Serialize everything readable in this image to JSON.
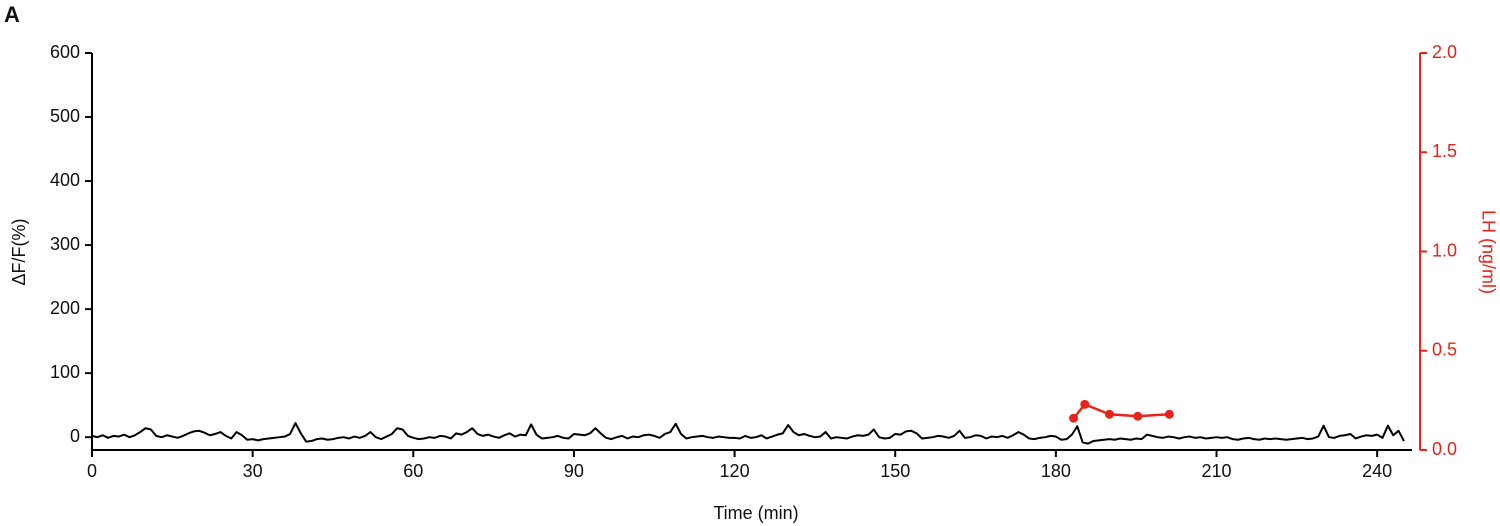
{
  "chart_data": {
    "type": "line",
    "panel_label": "A",
    "xlabel": "Time (min)",
    "ylabel": "ΔF/F(%)",
    "y2label": "LH (ng/ml)",
    "xlim": [
      0,
      248
    ],
    "xticks": [
      0,
      30,
      60,
      90,
      120,
      150,
      180,
      210,
      240
    ],
    "ylim": [
      -20,
      600
    ],
    "yticks": [
      0,
      100,
      200,
      300,
      400,
      500,
      600
    ],
    "y2lim": [
      0,
      2.0
    ],
    "y2ticks": [
      {
        "value": 0,
        "label": "0.0"
      },
      0.5,
      {
        "value": 1,
        "label": "1.0"
      },
      1.5,
      {
        "value": 2,
        "label": "2.0"
      }
    ],
    "y2color": "#e8231a",
    "series": [
      {
        "color": "#000000",
        "markers": false,
        "x": [
          0,
          1,
          2,
          3,
          4,
          5,
          6,
          7,
          8,
          9,
          10,
          11,
          12,
          13,
          14,
          15,
          16,
          17,
          18,
          19,
          20,
          21,
          22,
          23,
          24,
          25,
          26,
          27,
          28,
          29,
          30,
          31,
          32,
          33,
          34,
          35,
          36,
          37,
          38,
          39,
          40,
          41,
          42,
          43,
          44,
          45,
          46,
          47,
          48,
          49,
          50,
          51,
          52,
          53,
          54,
          55,
          56,
          57,
          58,
          59,
          60,
          61,
          62,
          63,
          64,
          65,
          66,
          67,
          68,
          69,
          70,
          71,
          72,
          73,
          74,
          75,
          76,
          77,
          78,
          79,
          80,
          81,
          82,
          83,
          84,
          85,
          86,
          87,
          88,
          89,
          90,
          91,
          92,
          93,
          94,
          95,
          96,
          97,
          98,
          99,
          100,
          101,
          102,
          103,
          104,
          105,
          106,
          107,
          108,
          109,
          110,
          111,
          112,
          113,
          114,
          115,
          116,
          117,
          118,
          119,
          120,
          121,
          122,
          123,
          124,
          125,
          126,
          127,
          128,
          129,
          130,
          131,
          132,
          133,
          134,
          135,
          136,
          137,
          138,
          139,
          140,
          141,
          142,
          143,
          144,
          145,
          146,
          147,
          148,
          149,
          150,
          151,
          152,
          153,
          154,
          155,
          156,
          157,
          158,
          159,
          160,
          161,
          162,
          163,
          164,
          165,
          166,
          167,
          168,
          169,
          170,
          171,
          172,
          173,
          174,
          175,
          176,
          177,
          178,
          179,
          180,
          181,
          182,
          183,
          184,
          185,
          186,
          187,
          188,
          189,
          190,
          191,
          192,
          193,
          194,
          195,
          196,
          197,
          198,
          199,
          200,
          201,
          202,
          203,
          204,
          205,
          206,
          207,
          208,
          209,
          210,
          211,
          212,
          213,
          214,
          215,
          216,
          217,
          218,
          219,
          220,
          221,
          222,
          223,
          224,
          225,
          226,
          227,
          228,
          229,
          230,
          231,
          232,
          233,
          234,
          235,
          236,
          237,
          238,
          239,
          240,
          241,
          242,
          243,
          244,
          245
        ],
        "values": [
          2,
          0,
          3,
          -1,
          2,
          1,
          4,
          0,
          3,
          8,
          14,
          12,
          2,
          0,
          3,
          1,
          -1,
          2,
          6,
          9,
          10,
          7,
          3,
          5,
          8,
          2,
          -2,
          8,
          3,
          -4,
          -3,
          -5,
          -3,
          -2,
          -1,
          0,
          1,
          5,
          22,
          6,
          -7,
          -6,
          -3,
          -2,
          -4,
          -3,
          -1,
          0,
          -2,
          1,
          -1,
          2,
          8,
          0,
          -3,
          1,
          5,
          14,
          12,
          2,
          -1,
          -3,
          -2,
          0,
          -1,
          2,
          1,
          -2,
          6,
          4,
          8,
          14,
          5,
          2,
          4,
          1,
          -1,
          3,
          6,
          1,
          4,
          3,
          20,
          4,
          -2,
          -1,
          0,
          2,
          -1,
          -2,
          5,
          4,
          3,
          6,
          14,
          6,
          -1,
          -3,
          0,
          2,
          -2,
          1,
          0,
          3,
          4,
          2,
          -1,
          5,
          8,
          21,
          5,
          -2,
          0,
          1,
          2,
          0,
          -1,
          1,
          0,
          -1,
          -1,
          -2,
          2,
          -1,
          0,
          3,
          -2,
          1,
          4,
          6,
          19,
          8,
          3,
          5,
          2,
          0,
          1,
          8,
          -2,
          0,
          -1,
          -2,
          1,
          3,
          2,
          4,
          12,
          0,
          -2,
          -1,
          5,
          4,
          9,
          10,
          6,
          -2,
          -1,
          0,
          2,
          1,
          -1,
          2,
          10,
          -1,
          0,
          3,
          2,
          -2,
          1,
          0,
          2,
          -1,
          3,
          8,
          4,
          -2,
          -3,
          -1,
          0,
          2,
          1,
          -4,
          -3,
          4,
          17,
          -8,
          -10,
          -6,
          -5,
          -4,
          -3,
          -4,
          -2,
          -3,
          -4,
          -2,
          -3,
          4,
          2,
          0,
          -1,
          1,
          0,
          -2,
          0,
          1,
          -1,
          0,
          -2,
          -1,
          0,
          -1,
          0,
          -3,
          -4,
          -2,
          -1,
          -3,
          -4,
          -2,
          -3,
          -2,
          -3,
          -4,
          -3,
          -2,
          -1,
          -3,
          -2,
          1,
          18,
          0,
          -1,
          2,
          3,
          5,
          -2,
          1,
          3,
          2,
          4,
          -1,
          18,
          3,
          10,
          -6
        ]
      },
      {
        "color": "#e8231a",
        "axis": "y2",
        "markers": true,
        "x": [
          183.3,
          185.4,
          190,
          195.3,
          201.2
        ],
        "values": [
          0.16,
          0.23,
          0.18,
          0.17,
          0.18
        ]
      }
    ]
  }
}
